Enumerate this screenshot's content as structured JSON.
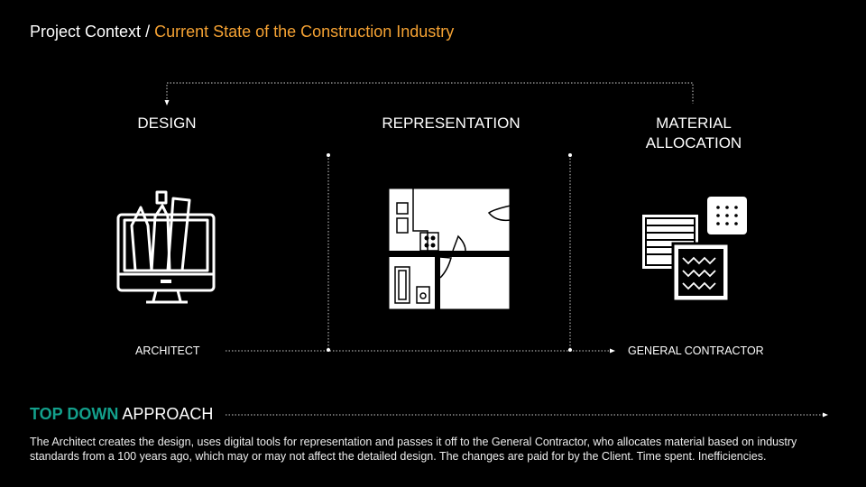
{
  "header": {
    "breadcrumb_root": "Project Context",
    "separator": " / ",
    "breadcrumb_current": "Current State of the Construction Industry",
    "accent_color": "#f5a233"
  },
  "stages": [
    {
      "label": "DESIGN",
      "icon": "monitor-drafting-tools-icon"
    },
    {
      "label": "REPRESENTATION",
      "icon": "floor-plan-icon"
    },
    {
      "label": "MATERIAL ALLOCATION",
      "icon": "material-samples-icon"
    }
  ],
  "roles": {
    "from": "ARCHITECT",
    "to": "GENERAL CONTRACTOR"
  },
  "approach": {
    "highlight": "TOP DOWN",
    "rest": " APPROACH",
    "highlight_color": "#13a08c"
  },
  "description": "The Architect creates the design, uses digital tools for representation and passes it off to the General Contractor, who allocates material based on industry standards from a 100 years ago, which may or may not affect the detailed design. The changes are paid for by the Client. Time spent. Inefficiencies."
}
